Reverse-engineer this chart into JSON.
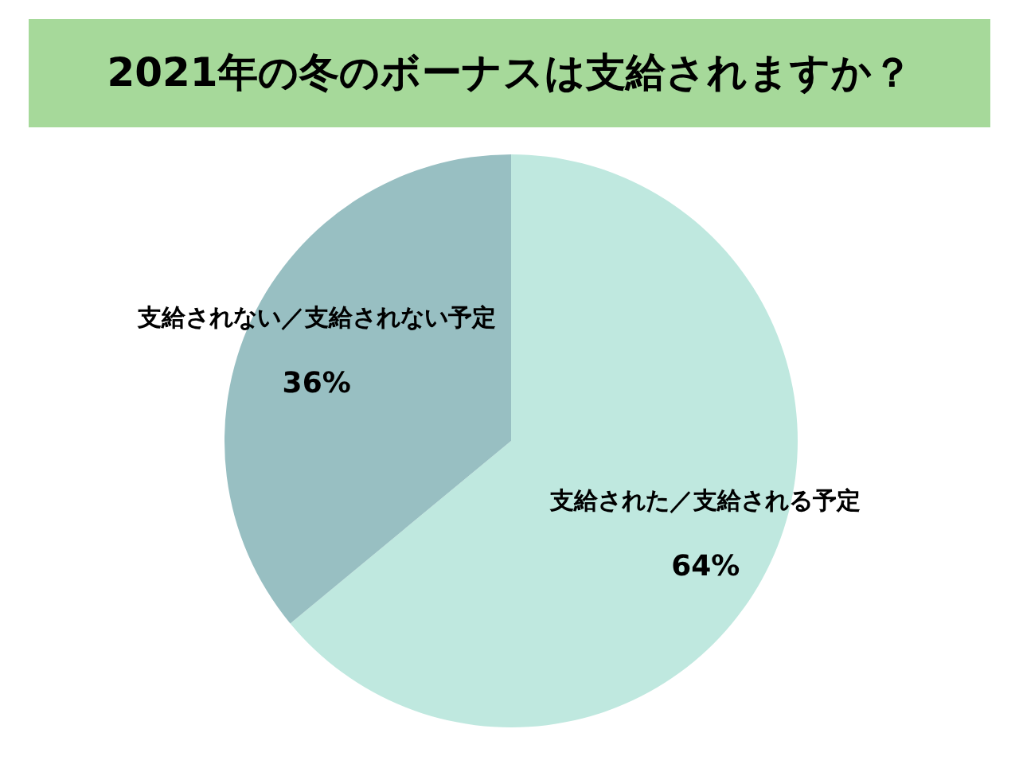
{
  "chart_data": {
    "type": "pie",
    "title": "2021年の冬のボーナスは支給されますか？",
    "categories": [
      "支給された／支給される予定",
      "支給されない／支給されない予定"
    ],
    "values": [
      64,
      36
    ],
    "colors": [
      "#bfe8df",
      "#98bfc2"
    ],
    "value_labels": [
      "64%",
      "36%"
    ]
  }
}
